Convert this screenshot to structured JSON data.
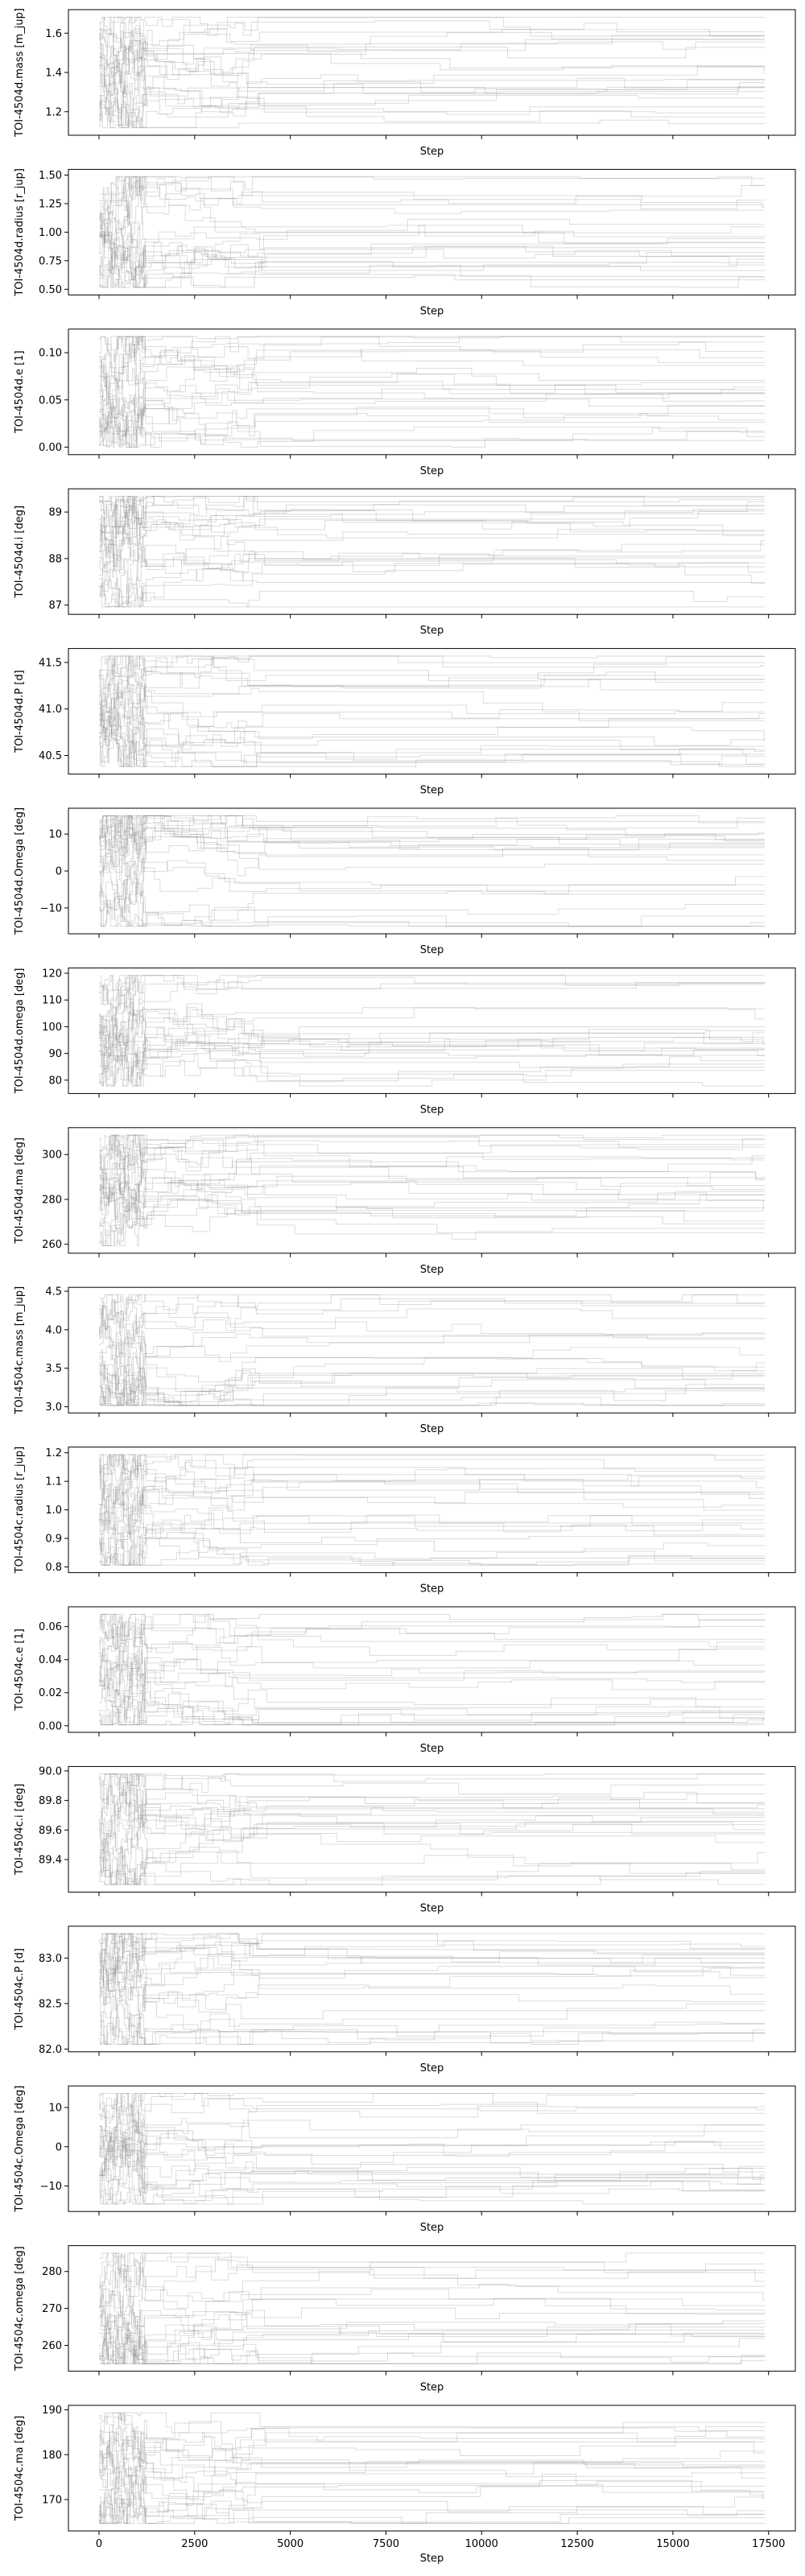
{
  "figure": {
    "type": "mcmc-trace-stack",
    "x_axis": {
      "label": "Step",
      "range": [
        -800,
        18200
      ],
      "ticks": [
        0,
        2500,
        5000,
        7500,
        10000,
        12500,
        15000,
        17500
      ],
      "tick_labels": [
        "0",
        "2500",
        "5000",
        "7500",
        "10000",
        "12500",
        "15000",
        "17500"
      ],
      "tick_labels_shown_on": "bottom panel only",
      "label_shown_on": "every panel"
    },
    "trace_color": "#808080",
    "trace_opacity": 0.28,
    "walkers_per_panel": 24,
    "max_step": 17400
  },
  "chart_data": [
    {
      "type": "line",
      "ylabel": "TOI-4504d.mass [m_jup]",
      "ylim": [
        1.08,
        1.72
      ],
      "yticks": [
        1.2,
        1.4,
        1.6
      ],
      "ytick_labels": [
        "1.2",
        "1.4",
        "1.6"
      ]
    },
    {
      "type": "line",
      "ylabel": "TOI-4504d.radius [r_jup]",
      "ylim": [
        0.45,
        1.55
      ],
      "yticks": [
        0.5,
        0.75,
        1.0,
        1.25,
        1.5
      ],
      "ytick_labels": [
        "0.50",
        "0.75",
        "1.00",
        "1.25",
        "1.50"
      ]
    },
    {
      "type": "line",
      "ylabel": "TOI-4504d.e [1]",
      "ylim": [
        -0.008,
        0.125
      ],
      "yticks": [
        0.0,
        0.05,
        0.1
      ],
      "ytick_labels": [
        "0.00",
        "0.05",
        "0.10"
      ]
    },
    {
      "type": "line",
      "ylabel": "TOI-4504d.i [deg]",
      "ylim": [
        86.8,
        89.5
      ],
      "yticks": [
        87,
        88,
        89
      ],
      "ytick_labels": [
        "87",
        "88",
        "89"
      ]
    },
    {
      "type": "line",
      "ylabel": "TOI-4504d.P [d]",
      "ylim": [
        40.3,
        41.65
      ],
      "yticks": [
        40.5,
        41.0,
        41.5
      ],
      "ytick_labels": [
        "40.5",
        "41.0",
        "41.5"
      ]
    },
    {
      "type": "line",
      "ylabel": "TOI-4504d.Omega [deg]",
      "ylim": [
        -17,
        17
      ],
      "yticks": [
        -10,
        0,
        10
      ],
      "ytick_labels": [
        "−10",
        "0",
        "10"
      ]
    },
    {
      "type": "line",
      "ylabel": "TOI-4504d.omega [deg]",
      "ylim": [
        75,
        122
      ],
      "yticks": [
        80,
        90,
        100,
        110,
        120
      ],
      "ytick_labels": [
        "80",
        "90",
        "100",
        "110",
        "120"
      ]
    },
    {
      "type": "line",
      "ylabel": "TOI-4504d.ma [deg]",
      "ylim": [
        256,
        312
      ],
      "yticks": [
        260,
        280,
        300
      ],
      "ytick_labels": [
        "260",
        "280",
        "300"
      ]
    },
    {
      "type": "line",
      "ylabel": "TOI-4504c.mass [m_jup]",
      "ylim": [
        2.92,
        4.55
      ],
      "yticks": [
        3.0,
        3.5,
        4.0,
        4.5
      ],
      "ytick_labels": [
        "3.0",
        "3.5",
        "4.0",
        "4.5"
      ]
    },
    {
      "type": "line",
      "ylabel": "TOI-4504c.radius [r_jup]",
      "ylim": [
        0.78,
        1.22
      ],
      "yticks": [
        0.8,
        0.9,
        1.0,
        1.1,
        1.2
      ],
      "ytick_labels": [
        "0.8",
        "0.9",
        "1.0",
        "1.1",
        "1.2"
      ]
    },
    {
      "type": "line",
      "ylabel": "TOI-4504c.e [1]",
      "ylim": [
        -0.004,
        0.072
      ],
      "yticks": [
        0.0,
        0.02,
        0.04,
        0.06
      ],
      "ytick_labels": [
        "0.00",
        "0.02",
        "0.04",
        "0.06"
      ]
    },
    {
      "type": "line",
      "ylabel": "TOI-4504c.i [deg]",
      "ylim": [
        89.18,
        90.03
      ],
      "yticks": [
        89.4,
        89.6,
        89.8,
        90.0
      ],
      "ytick_labels": [
        "89.4",
        "89.6",
        "89.8",
        "90.0"
      ]
    },
    {
      "type": "line",
      "ylabel": "TOI-4504c.P [d]",
      "ylim": [
        81.97,
        83.35
      ],
      "yticks": [
        82.0,
        82.5,
        83.0
      ],
      "ytick_labels": [
        "82.0",
        "82.5",
        "83.0"
      ]
    },
    {
      "type": "line",
      "ylabel": "TOI-4504c.Omega [deg]",
      "ylim": [
        -16.5,
        15.5
      ],
      "yticks": [
        -10,
        0,
        10
      ],
      "ytick_labels": [
        "−10",
        "0",
        "10"
      ]
    },
    {
      "type": "line",
      "ylabel": "TOI-4504c.omega [deg]",
      "ylim": [
        253,
        287
      ],
      "yticks": [
        260,
        270,
        280
      ],
      "ytick_labels": [
        "260",
        "270",
        "280"
      ]
    },
    {
      "type": "line",
      "ylabel": "TOI-4504c.ma [deg]",
      "ylim": [
        163,
        191
      ],
      "yticks": [
        170,
        180,
        190
      ],
      "ytick_labels": [
        "170",
        "180",
        "190"
      ]
    }
  ]
}
